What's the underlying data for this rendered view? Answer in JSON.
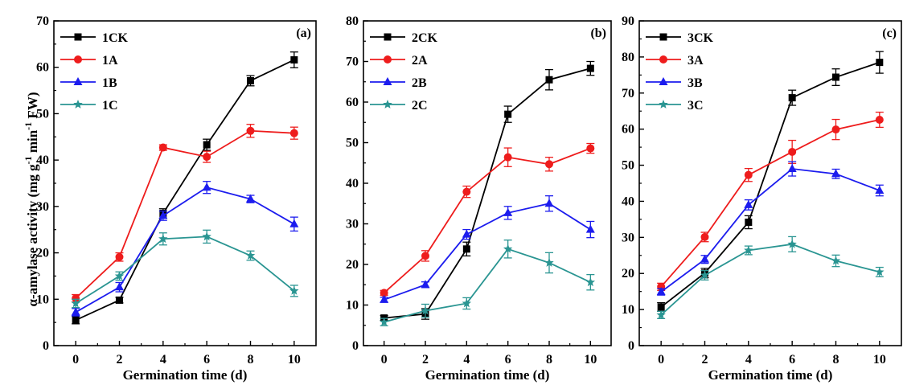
{
  "figure": {
    "ylabel_main": "α-amylase activity (mg g",
    "ylabel_sup1": "-1",
    "ylabel_mid": " min",
    "ylabel_sup2": "-1",
    "ylabel_end": " FW)"
  },
  "chart_data": [
    {
      "type": "line",
      "panel_label": "(a)",
      "xlabel": "Germination time (d)",
      "ylabel": "α-amylase activity (mg g-1 min-1 FW)",
      "x": [
        0,
        2,
        4,
        6,
        8,
        10
      ],
      "xticks": [
        "0",
        "2",
        "4",
        "6",
        "8",
        "10"
      ],
      "xlim": [
        -1,
        11
      ],
      "ylim": [
        0,
        70
      ],
      "yticks": [
        "0",
        "10",
        "20",
        "30",
        "40",
        "50",
        "60",
        "70"
      ],
      "legend_position": "top-left",
      "series": [
        {
          "name": "1CK",
          "color": "#000000",
          "marker": "square",
          "values": [
            5.5,
            9.8,
            28.5,
            43.3,
            57.1,
            61.6
          ],
          "errors": [
            0.8,
            0.6,
            1.0,
            1.2,
            1.1,
            1.7
          ]
        },
        {
          "name": "1A",
          "color": "#ee1c1c",
          "marker": "circle",
          "values": [
            10.2,
            19.1,
            42.7,
            40.7,
            46.3,
            45.8
          ],
          "errors": [
            0.8,
            0.9,
            0.6,
            1.2,
            1.4,
            1.3
          ]
        },
        {
          "name": "1B",
          "color": "#1c1cee",
          "marker": "triangle",
          "values": [
            7.2,
            12.6,
            28.0,
            34.1,
            31.6,
            26.2
          ],
          "errors": [
            0.8,
            1.0,
            1.0,
            1.3,
            0.8,
            1.5
          ]
        },
        {
          "name": "1C",
          "color": "#2a9592",
          "marker": "star",
          "values": [
            9.1,
            15.0,
            23.0,
            23.5,
            19.4,
            11.8
          ],
          "errors": [
            0.9,
            0.9,
            1.3,
            1.4,
            1.0,
            1.2
          ]
        }
      ]
    },
    {
      "type": "line",
      "panel_label": "(b)",
      "xlabel": "Germination time (d)",
      "x": [
        0,
        2,
        4,
        6,
        8,
        10
      ],
      "xticks": [
        "0",
        "2",
        "4",
        "6",
        "8",
        "10"
      ],
      "xlim": [
        -1,
        11
      ],
      "ylim": [
        0,
        80
      ],
      "yticks": [
        "0",
        "10",
        "20",
        "30",
        "40",
        "50",
        "60",
        "70",
        "80"
      ],
      "legend_position": "top-left",
      "series": [
        {
          "name": "2CK",
          "color": "#000000",
          "marker": "square",
          "values": [
            6.8,
            7.8,
            23.8,
            57.0,
            65.5,
            68.3
          ],
          "errors": [
            0.6,
            1.3,
            1.7,
            2.0,
            2.5,
            1.7
          ]
        },
        {
          "name": "2A",
          "color": "#ee1c1c",
          "marker": "circle",
          "values": [
            13.0,
            22.1,
            37.9,
            46.4,
            44.7,
            48.6
          ],
          "errors": [
            0.6,
            1.3,
            1.4,
            2.3,
            1.7,
            1.2
          ]
        },
        {
          "name": "2B",
          "color": "#1c1cee",
          "marker": "triangle",
          "values": [
            11.3,
            15.0,
            27.4,
            32.7,
            35.0,
            28.6
          ],
          "errors": [
            0.6,
            0.7,
            1.2,
            1.6,
            1.9,
            2.0
          ]
        },
        {
          "name": "2C",
          "color": "#2a9592",
          "marker": "star",
          "values": [
            5.8,
            8.6,
            10.4,
            23.8,
            20.4,
            15.6
          ],
          "errors": [
            0.9,
            1.6,
            1.4,
            2.2,
            2.5,
            1.9
          ]
        }
      ]
    },
    {
      "type": "line",
      "panel_label": "(c)",
      "xlabel": "Germination time (d)",
      "x": [
        0,
        2,
        4,
        6,
        8,
        10
      ],
      "xticks": [
        "0",
        "2",
        "4",
        "6",
        "8",
        "10"
      ],
      "xlim": [
        -1,
        11
      ],
      "ylim": [
        0,
        90
      ],
      "yticks": [
        "0",
        "10",
        "20",
        "30",
        "40",
        "50",
        "60",
        "70",
        "80",
        "90"
      ],
      "legend_position": "top-left",
      "series": [
        {
          "name": "3CK",
          "color": "#000000",
          "marker": "square",
          "values": [
            10.7,
            20.1,
            34.2,
            68.7,
            74.4,
            78.5
          ],
          "errors": [
            1.2,
            1.3,
            1.8,
            2.1,
            2.3,
            3.0
          ]
        },
        {
          "name": "3A",
          "color": "#ee1c1c",
          "marker": "circle",
          "values": [
            16.3,
            30.1,
            47.3,
            53.7,
            59.9,
            62.6
          ],
          "errors": [
            1.0,
            1.3,
            1.8,
            3.2,
            2.8,
            2.1
          ]
        },
        {
          "name": "3B",
          "color": "#1c1cee",
          "marker": "triangle",
          "values": [
            14.9,
            23.9,
            39.0,
            49.0,
            47.6,
            43.0
          ],
          "errors": [
            0.9,
            1.1,
            1.4,
            2.0,
            1.3,
            1.5
          ]
        },
        {
          "name": "3C",
          "color": "#2a9592",
          "marker": "star",
          "values": [
            8.5,
            19.5,
            26.4,
            28.1,
            23.5,
            20.4
          ],
          "errors": [
            1.0,
            1.3,
            1.2,
            2.1,
            1.6,
            1.3
          ]
        }
      ]
    }
  ]
}
